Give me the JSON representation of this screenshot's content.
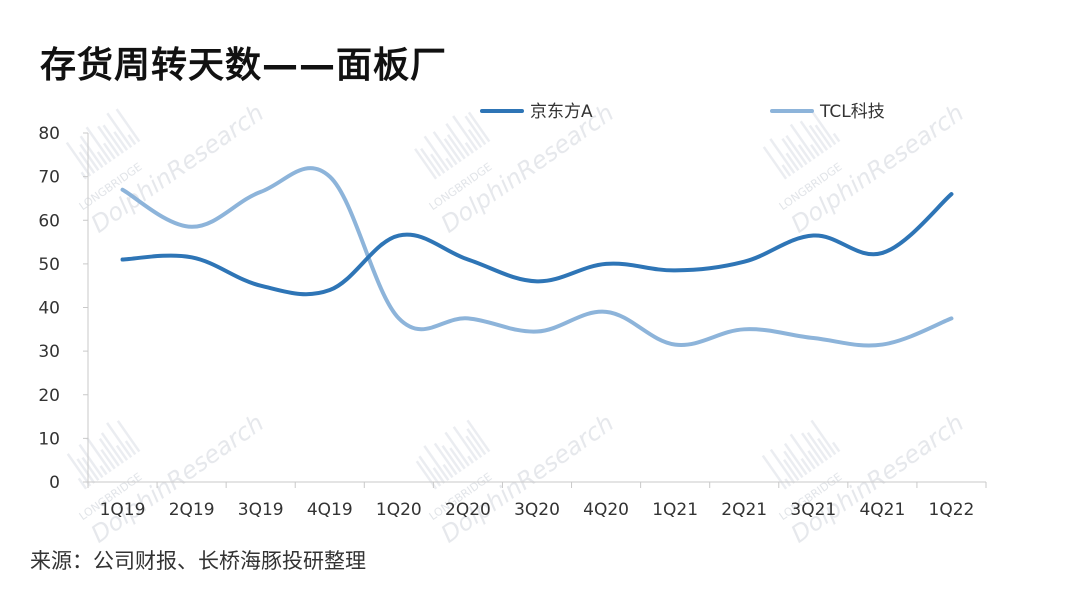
{
  "title": "存货周转天数——面板厂",
  "source": "来源：公司财报、长桥海豚投研整理",
  "watermark": {
    "main": "DolphinResearch",
    "sub": "LONGBRIDGE"
  },
  "chart_data": {
    "type": "line",
    "categories": [
      "1Q19",
      "2Q19",
      "3Q19",
      "4Q19",
      "1Q20",
      "2Q20",
      "3Q20",
      "4Q20",
      "1Q21",
      "2Q21",
      "3Q21",
      "4Q21",
      "1Q22"
    ],
    "series": [
      {
        "name": "京东方A",
        "color": "#2e75b6",
        "values": [
          51,
          51.5,
          45,
          44,
          56.5,
          51,
          46,
          50,
          48.5,
          50.5,
          56.5,
          52.5,
          66
        ]
      },
      {
        "name": "TCL科技",
        "color": "#8db4da",
        "values": [
          67,
          58.5,
          66.5,
          70,
          37.5,
          37.5,
          34.5,
          39,
          31.5,
          35,
          33,
          31.5,
          37.5
        ]
      }
    ],
    "ylim": [
      0,
      80
    ],
    "yticks": [
      0,
      10,
      20,
      30,
      40,
      50,
      60,
      70,
      80
    ],
    "xlabel": "",
    "ylabel": "",
    "grid": false,
    "legend_position": "top"
  }
}
